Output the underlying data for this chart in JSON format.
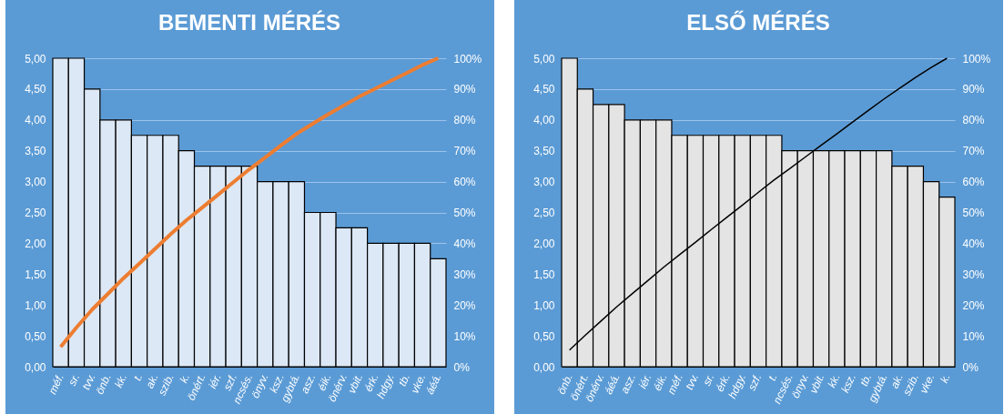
{
  "chart_data": [
    {
      "type": "bar",
      "title": "BEMENTI MÉRÉS",
      "categories": [
        "méf.",
        "sr.",
        "tvv.",
        "önb.",
        "kk.",
        "t.",
        "ak.",
        "szib.",
        "k.",
        "önért.",
        "iér.",
        "szf.",
        "ncsés.",
        "önyv.",
        "ksz.",
        "gybtá.",
        "asz.",
        "éik.",
        "önérv.",
        "vbit.",
        "érk.",
        "hdgy.",
        "tb.",
        "vke.",
        "áéá."
      ],
      "series": [
        {
          "color": "#dce8f6",
          "values": [
            5,
            5,
            4.5,
            4,
            4,
            3.75,
            3.75,
            3.75,
            3.5,
            3.25,
            3.25,
            3.25,
            3.25,
            3,
            3,
            3,
            2.5,
            2.5,
            2.25,
            2.25,
            2,
            2,
            2,
            2,
            1.75
          ]
        },
        {
          "type": "line",
          "axis": "y2",
          "color": "#ed7d31",
          "values": [
            6.4,
            12.7,
            18.5,
            23.6,
            28.7,
            33.4,
            38.2,
            43.0,
            47.5,
            51.6,
            55.7,
            59.9,
            64.0,
            67.8,
            71.7,
            75.5,
            78.7,
            81.8,
            84.7,
            87.6,
            90.1,
            92.7,
            95.2,
            97.8,
            100
          ]
        }
      ],
      "ylim": [
        0,
        5
      ],
      "yticks": [
        {
          "value": 0,
          "label": "0,00"
        },
        {
          "value": 0.5,
          "label": "0,50"
        },
        {
          "value": 1,
          "label": "1,00"
        },
        {
          "value": 1.5,
          "label": "1,50"
        },
        {
          "value": 2,
          "label": "2,00"
        },
        {
          "value": 2.5,
          "label": "2,50"
        },
        {
          "value": 3,
          "label": "3,00"
        },
        {
          "value": 3.5,
          "label": "3,50"
        },
        {
          "value": 4,
          "label": "4,00"
        },
        {
          "value": 4.5,
          "label": "4,50"
        },
        {
          "value": 5,
          "label": "5,00"
        }
      ],
      "y2lim": [
        0,
        100
      ],
      "y2ticks": [
        {
          "value": 0,
          "label": "0%"
        },
        {
          "value": 10,
          "label": "10%"
        },
        {
          "value": 20,
          "label": "20%"
        },
        {
          "value": 30,
          "label": "30%"
        },
        {
          "value": 40,
          "label": "40%"
        },
        {
          "value": 50,
          "label": "50%"
        },
        {
          "value": 60,
          "label": "60%"
        },
        {
          "value": 70,
          "label": "70%"
        },
        {
          "value": 80,
          "label": "80%"
        },
        {
          "value": 90,
          "label": "90%"
        },
        {
          "value": 100,
          "label": "100%"
        }
      ],
      "grid": "y"
    },
    {
      "type": "bar",
      "title": "ELSŐ MÉRÉS",
      "categories": [
        "önb.",
        "önért.",
        "önérv.",
        "áéá.",
        "asz.",
        "iér.",
        "éik.",
        "méf.",
        "tvv.",
        "sr.",
        "érk.",
        "hdgy.",
        "szf.",
        "t.",
        "ncsés.",
        "önyv.",
        "vbit.",
        "kk.",
        "ksz.",
        "tb.",
        "gybtá.",
        "ak.",
        "szib.",
        "vke.",
        "k."
      ],
      "series": [
        {
          "color": "#e4e4e4",
          "values": [
            5,
            4.5,
            4.25,
            4.25,
            4,
            4,
            4,
            3.75,
            3.75,
            3.75,
            3.75,
            3.75,
            3.75,
            3.75,
            3.5,
            3.5,
            3.5,
            3.5,
            3.5,
            3.5,
            3.5,
            3.25,
            3.25,
            3,
            2.75
          ]
        },
        {
          "type": "line",
          "axis": "y2",
          "color": "#000000",
          "values": [
            5.4,
            10.2,
            14.8,
            19.4,
            23.7,
            28.0,
            32.3,
            36.3,
            40.3,
            44.4,
            48.4,
            52.4,
            56.5,
            60.5,
            64.2,
            68.0,
            71.8,
            75.5,
            79.3,
            83.1,
            86.8,
            90.3,
            93.8,
            97.0,
            100
          ]
        }
      ],
      "ylim": [
        0,
        5
      ],
      "yticks": [
        {
          "value": 0,
          "label": "0,00"
        },
        {
          "value": 0.5,
          "label": "0,50"
        },
        {
          "value": 1,
          "label": "1,00"
        },
        {
          "value": 1.5,
          "label": "1,50"
        },
        {
          "value": 2,
          "label": "2,00"
        },
        {
          "value": 2.5,
          "label": "2,50"
        },
        {
          "value": 3,
          "label": "3,00"
        },
        {
          "value": 3.5,
          "label": "3,50"
        },
        {
          "value": 4,
          "label": "4,00"
        },
        {
          "value": 4.5,
          "label": "4,50"
        },
        {
          "value": 5,
          "label": "5,00"
        }
      ],
      "y2lim": [
        0,
        100
      ],
      "y2ticks": [
        {
          "value": 0,
          "label": "0%"
        },
        {
          "value": 10,
          "label": "10%"
        },
        {
          "value": 20,
          "label": "20%"
        },
        {
          "value": 30,
          "label": "30%"
        },
        {
          "value": 40,
          "label": "40%"
        },
        {
          "value": 50,
          "label": "50%"
        },
        {
          "value": 60,
          "label": "60%"
        },
        {
          "value": 70,
          "label": "70%"
        },
        {
          "value": 80,
          "label": "80%"
        },
        {
          "value": 90,
          "label": "90%"
        },
        {
          "value": 100,
          "label": "100%"
        }
      ],
      "grid": "y"
    }
  ]
}
